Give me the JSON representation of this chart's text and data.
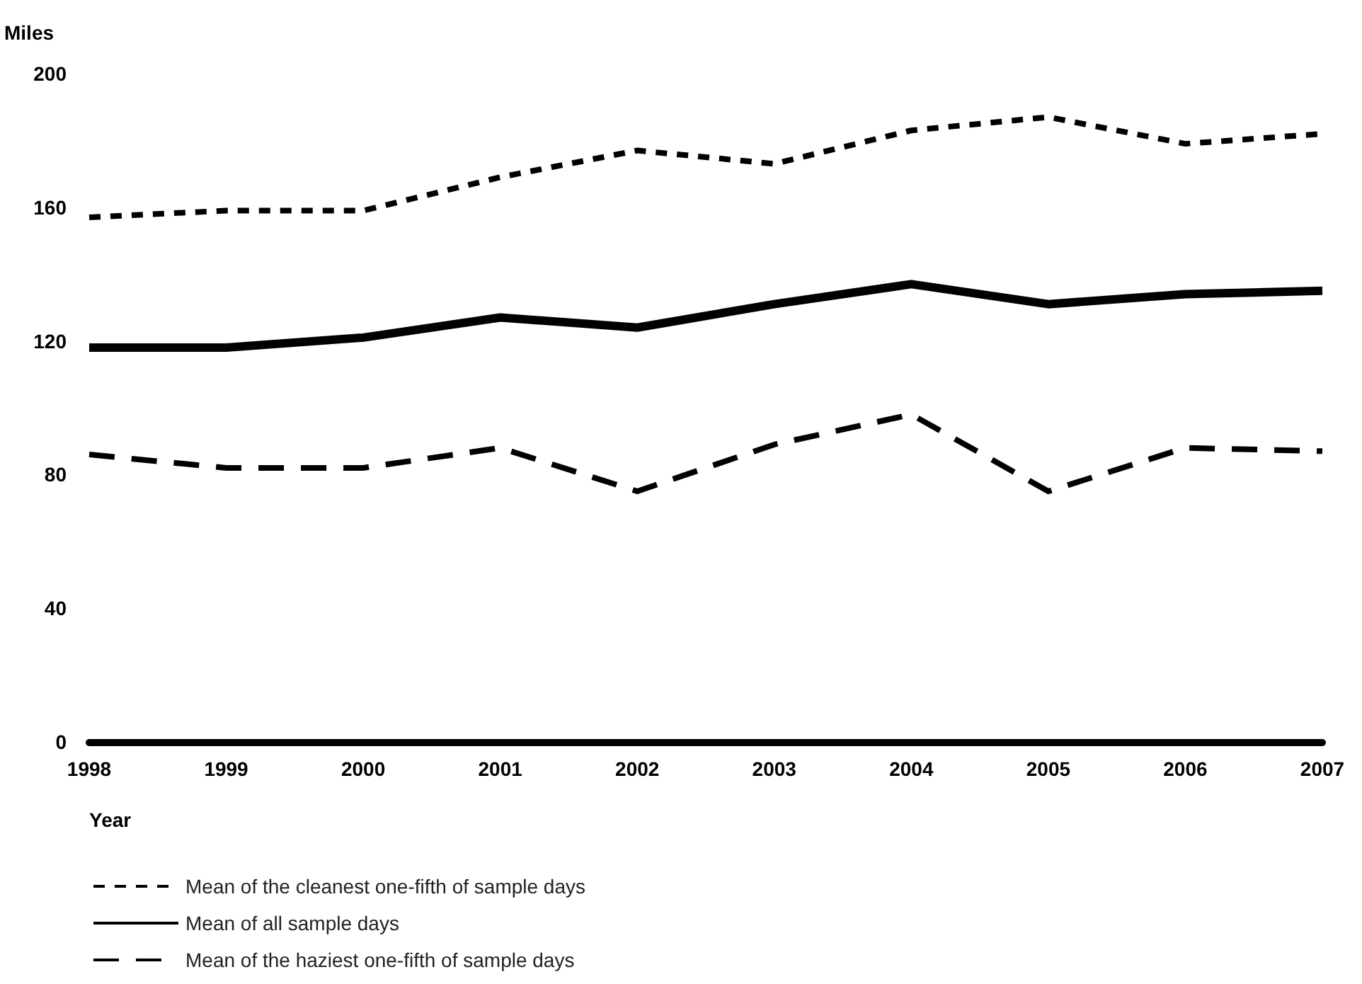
{
  "chart_data": {
    "type": "line",
    "ylabel": "Miles",
    "xlabel": "Year",
    "x": [
      1998,
      1999,
      2000,
      2001,
      2002,
      2003,
      2004,
      2005,
      2006,
      2007
    ],
    "xlim": [
      1998,
      2007
    ],
    "xticks": [
      1998,
      1999,
      2000,
      2001,
      2002,
      2003,
      2004,
      2005,
      2006,
      2007
    ],
    "ylim": [
      0,
      200
    ],
    "yticks": [
      0,
      40,
      80,
      120,
      160,
      200
    ],
    "grid": false,
    "legend": "bottom",
    "marker": "none",
    "series": [
      {
        "name": "Mean of the cleanest one-fifth of sample days",
        "color": "#000000",
        "line_style": "dotted",
        "values": [
          157,
          159,
          159,
          169,
          177,
          173,
          183,
          187,
          179,
          182
        ]
      },
      {
        "name": "Mean of all sample days",
        "color": "#000000",
        "line_style": "solid",
        "values": [
          118,
          118,
          121,
          127,
          124,
          131,
          137,
          131,
          134,
          135
        ]
      },
      {
        "name": "Mean of the haziest one-fifth of sample days",
        "color": "#000000",
        "line_style": "dashed",
        "values": [
          86,
          82,
          82,
          88,
          75,
          89,
          98,
          75,
          88,
          87
        ]
      }
    ]
  }
}
